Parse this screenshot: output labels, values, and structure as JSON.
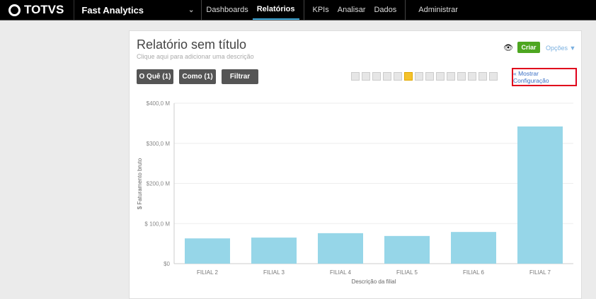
{
  "topbar": {
    "brand": "TOTVS",
    "app": "Fast Analytics",
    "nav": [
      "Dashboards",
      "Relatórios",
      "KPIs",
      "Analisar",
      "Dados",
      "Administrar"
    ],
    "active": "Relatórios"
  },
  "report": {
    "title": "Relatório sem título",
    "subtitle": "Clique aqui para adicionar uma descrição",
    "btn_what": "O Quê (1)",
    "btn_how": "Como (1)",
    "btn_filter": "Filtrar",
    "create": "Criar",
    "options": "Opções ▼",
    "show_config": "« Mostrar Configuração"
  },
  "chart_data": {
    "type": "bar",
    "categories": [
      "FILIAL 2",
      "FILIAL 3",
      "FILIAL 4",
      "FILIAL 5",
      "FILIAL 6",
      "FILIAL 7"
    ],
    "values": [
      63,
      65,
      76,
      69,
      79,
      342
    ],
    "xlabel": "Descrição da filial",
    "ylabel": "$ Faturamento bruto",
    "ylim": [
      0,
      400
    ],
    "ticks": [
      "$0",
      "$ 100,0 M",
      "$200,0 M",
      "$300,0 M",
      "$400,0 M"
    ],
    "color": "#96d6e8",
    "grid": true
  }
}
